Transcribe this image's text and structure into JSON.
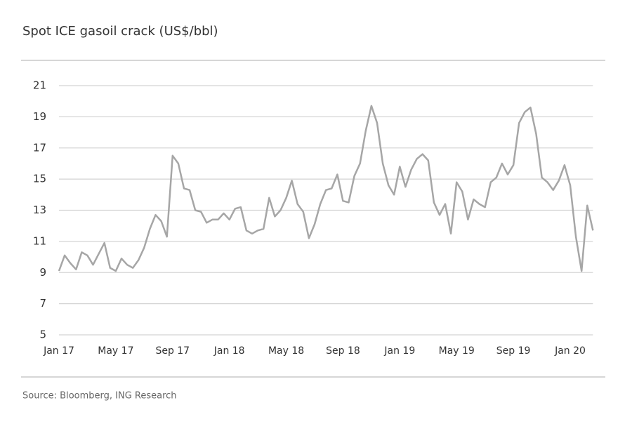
{
  "chart_data": {
    "type": "line",
    "title": "Spot ICE gasoil crack (US$/bbl)",
    "source": "Source: Bloomberg, ING Research",
    "categories": [
      "Jan 17",
      null,
      null,
      null,
      null,
      null,
      null,
      null,
      null,
      null,
      "May 17",
      null,
      null,
      null,
      null,
      null,
      null,
      null,
      null,
      null,
      "Sep 17",
      null,
      null,
      null,
      null,
      null,
      null,
      null,
      null,
      null,
      "Jan 18",
      null,
      null,
      null,
      null,
      null,
      null,
      null,
      null,
      null,
      "May 18",
      null,
      null,
      null,
      null,
      null,
      null,
      null,
      null,
      null,
      "Sep 18",
      null,
      null,
      null,
      null,
      null,
      null,
      null,
      null,
      null,
      "Jan 19",
      null,
      null,
      null,
      null,
      null,
      null,
      null,
      null,
      null,
      "May 19",
      null,
      null,
      null,
      null,
      null,
      null,
      null,
      null,
      null,
      "Sep 19",
      null,
      null,
      null,
      null,
      null,
      null,
      null,
      null,
      null,
      "Jan 20",
      null,
      null,
      null,
      null
    ],
    "values": [
      9.1,
      10.1,
      9.6,
      9.2,
      10.3,
      10.1,
      9.5,
      10.2,
      10.9,
      9.3,
      9.1,
      9.9,
      9.5,
      9.3,
      9.8,
      10.6,
      11.8,
      12.7,
      12.3,
      11.3,
      16.5,
      16.0,
      14.4,
      14.3,
      13.0,
      12.9,
      12.2,
      12.4,
      12.4,
      12.8,
      12.4,
      13.1,
      13.2,
      11.7,
      11.5,
      11.7,
      11.8,
      13.8,
      12.6,
      13.0,
      13.8,
      14.9,
      13.4,
      12.9,
      11.2,
      12.1,
      13.4,
      14.3,
      14.4,
      15.3,
      13.6,
      13.5,
      15.2,
      16.0,
      18.1,
      19.7,
      18.6,
      16.0,
      14.6,
      14.0,
      15.8,
      14.5,
      15.6,
      16.3,
      16.6,
      16.2,
      13.5,
      12.7,
      13.4,
      11.5,
      14.8,
      14.2,
      12.4,
      13.7,
      13.4,
      13.2,
      14.8,
      15.1,
      16.0,
      15.3,
      15.9,
      18.6,
      19.3,
      19.6,
      17.9,
      15.1,
      14.8,
      14.3,
      14.9,
      15.9,
      14.6,
      11.3,
      9.1,
      13.3,
      11.7
    ],
    "color": "#a6a6a6",
    "ylim": [
      5,
      21
    ],
    "yticks": [
      5,
      7,
      9,
      11,
      13,
      15,
      17,
      19,
      21
    ],
    "grid": true
  }
}
